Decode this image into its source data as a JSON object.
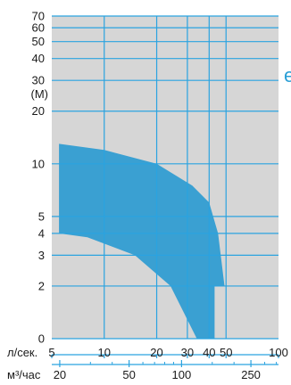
{
  "chart_data": {
    "type": "area",
    "title": "",
    "ylabel": "(М)",
    "ylabel_value": "30",
    "xlabel_primary": "л/сек.",
    "xlabel_secondary": "м³/час",
    "colors": {
      "area": "#3aa0d2",
      "plot_bg": "#d6d6d6",
      "grid": "#2aa3e0",
      "axis_text": "#1a1a1a"
    },
    "y_ticks": [
      {
        "v": 70,
        "label": "70"
      },
      {
        "v": 60,
        "label": "60"
      },
      {
        "v": 50,
        "label": "50"
      },
      {
        "v": 40,
        "label": "40"
      },
      {
        "v": 20,
        "label": "20"
      },
      {
        "v": 10,
        "label": "10"
      },
      {
        "v": 5,
        "label": "5"
      },
      {
        "v": 4,
        "label": "4"
      },
      {
        "v": 3,
        "label": "3"
      },
      {
        "v": 2,
        "label": "2"
      },
      {
        "v": 1,
        "label": "0"
      }
    ],
    "y_gridlines": [
      1,
      2,
      3,
      4,
      5,
      10,
      20,
      30,
      40,
      50,
      60,
      70
    ],
    "x_primary_ticks": [
      {
        "v": 5,
        "label": "5"
      },
      {
        "v": 10,
        "label": "10"
      },
      {
        "v": 20,
        "label": "20"
      },
      {
        "v": 30,
        "label": "30"
      },
      {
        "v": 40,
        "label": "40"
      },
      {
        "v": 50,
        "label": "50"
      },
      {
        "v": 100,
        "label": "100"
      }
    ],
    "x_gridlines": [
      10,
      20,
      30,
      40,
      50
    ],
    "x_secondary_ticks": [
      {
        "v": 20,
        "label": "20"
      },
      {
        "v": 50,
        "label": "50"
      },
      {
        "v": 100,
        "label": "100"
      },
      {
        "v": 250,
        "label": "250"
      }
    ],
    "x_secondary_minor": [
      30,
      40,
      60,
      70,
      80,
      90,
      150,
      200,
      300,
      350
    ],
    "xlim": [
      5,
      100
    ],
    "ylim": [
      1,
      70
    ],
    "x_scale": "log",
    "y_scale": "log",
    "envelope": [
      {
        "x": 5.5,
        "y": 13
      },
      {
        "x": 10,
        "y": 12
      },
      {
        "x": 20,
        "y": 10
      },
      {
        "x": 32,
        "y": 7.5
      },
      {
        "x": 40,
        "y": 6
      },
      {
        "x": 45,
        "y": 4
      },
      {
        "x": 49,
        "y": 2
      },
      {
        "x": 43,
        "y": 2
      },
      {
        "x": 43,
        "y": 1
      },
      {
        "x": 34,
        "y": 1
      },
      {
        "x": 24,
        "y": 2
      },
      {
        "x": 15,
        "y": 3
      },
      {
        "x": 8,
        "y": 3.8
      },
      {
        "x": 5.5,
        "y": 4
      }
    ]
  },
  "fragment": "e"
}
